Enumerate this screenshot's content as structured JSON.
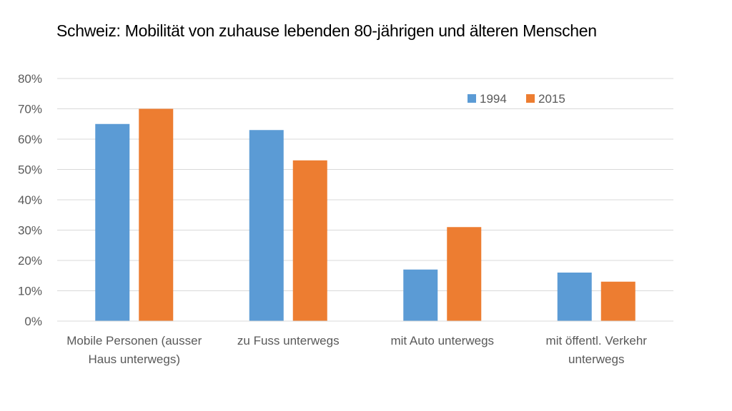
{
  "chart_data": {
    "type": "bar",
    "title": "Schweiz: Mobilität von zuhause lebenden 80-jährigen und älteren Menschen",
    "categories": [
      [
        "Mobile Personen (ausser",
        "Haus unterwegs)"
      ],
      [
        "zu Fuss unterwegs"
      ],
      [
        "mit Auto unterwegs"
      ],
      [
        "mit öffentl. Verkehr",
        "unterwegs"
      ]
    ],
    "series": [
      {
        "name": "1994",
        "color": "#5B9BD5",
        "values": [
          65,
          63,
          17,
          16
        ]
      },
      {
        "name": "2015",
        "color": "#ED7D31",
        "values": [
          70,
          53,
          31,
          13
        ]
      }
    ],
    "ylim": [
      0,
      80
    ],
    "yticks": [
      0,
      10,
      20,
      30,
      40,
      50,
      60,
      70,
      80
    ],
    "ytick_suffix": "%",
    "grid": true,
    "legend_position": "top-right"
  }
}
